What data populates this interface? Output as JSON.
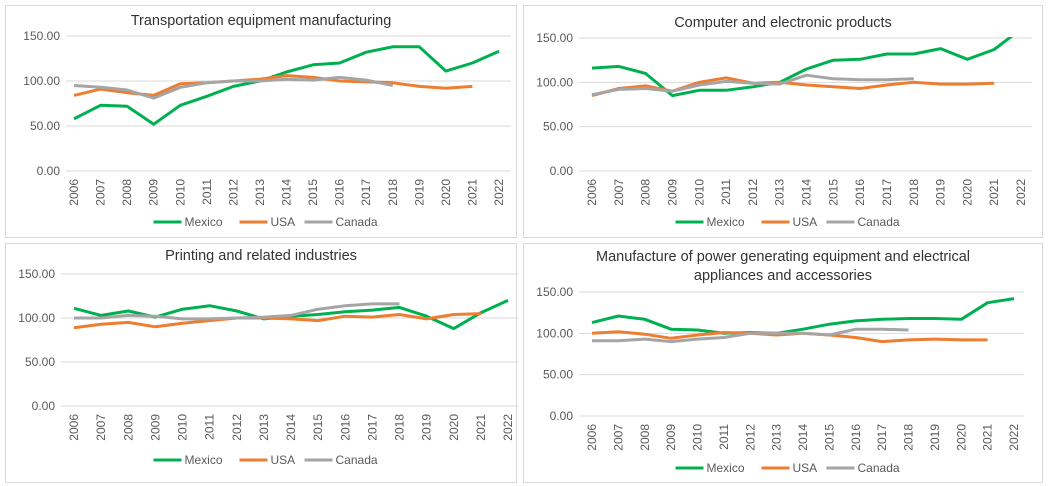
{
  "chart_data": [
    {
      "type": "line",
      "title": "Transportation equipment manufacturing",
      "categories": [
        "2006",
        "2007",
        "2008",
        "2009",
        "2010",
        "2011",
        "2012",
        "2013",
        "2014",
        "2015",
        "2016",
        "2017",
        "2018",
        "2019",
        "2020",
        "2021",
        "2022"
      ],
      "yticks": [
        "0.00",
        "50.00",
        "100.00",
        "150.00"
      ],
      "ylim": [
        0,
        150
      ],
      "grid": true,
      "legend": "bottom",
      "series": [
        {
          "name": "Mexico",
          "color": "#00b050",
          "values": [
            58,
            73,
            72,
            52,
            73,
            83,
            94,
            100,
            110,
            118,
            120,
            132,
            138,
            138,
            111,
            120,
            133
          ]
        },
        {
          "name": "USA",
          "color": "#ed7d31",
          "values": [
            84,
            91,
            87,
            84,
            97,
            98,
            100,
            102,
            106,
            104,
            100,
            99,
            98,
            94,
            92,
            94,
            null
          ]
        },
        {
          "name": "Canada",
          "color": "#a5a5a5",
          "values": [
            95,
            93,
            90,
            81,
            93,
            98,
            100,
            100,
            102,
            101,
            104,
            101,
            95,
            null,
            null,
            null,
            null
          ]
        }
      ]
    },
    {
      "type": "line",
      "title": "Computer and electronic products",
      "categories": [
        "2006",
        "2007",
        "2008",
        "2009",
        "2010",
        "2011",
        "2012",
        "2013",
        "2014",
        "2015",
        "2016",
        "2017",
        "2018",
        "2019",
        "2020",
        "2021",
        "2022"
      ],
      "yticks": [
        "0.00",
        "50.00",
        "100.00",
        "150.00"
      ],
      "ylim": [
        0,
        150
      ],
      "grid": true,
      "legend": "bottom",
      "series": [
        {
          "name": "Mexico",
          "color": "#00b050",
          "values": [
            116,
            118,
            110,
            85,
            91,
            91,
            95,
            100,
            115,
            125,
            126,
            132,
            132,
            138,
            126,
            137,
            160
          ]
        },
        {
          "name": "USA",
          "color": "#ed7d31",
          "values": [
            85,
            93,
            96,
            90,
            100,
            105,
            99,
            100,
            97,
            95,
            93,
            97,
            100,
            98,
            98,
            99,
            null
          ]
        },
        {
          "name": "Canada",
          "color": "#a5a5a5",
          "values": [
            86,
            92,
            93,
            90,
            97,
            101,
            99,
            98,
            108,
            104,
            103,
            103,
            104,
            null,
            null,
            null,
            null
          ]
        }
      ]
    },
    {
      "type": "line",
      "title": "Printing and related industries",
      "categories": [
        "2006",
        "2007",
        "2008",
        "2009",
        "2010",
        "2011",
        "2012",
        "2013",
        "2014",
        "2015",
        "2016",
        "2017",
        "2018",
        "2019",
        "2020",
        "2021",
        "2022"
      ],
      "yticks": [
        "0.00",
        "50.00",
        "100.00",
        "150.00"
      ],
      "ylim": [
        0,
        150
      ],
      "grid": true,
      "legend": "bottom",
      "series": [
        {
          "name": "Mexico",
          "color": "#00b050",
          "values": [
            111,
            103,
            108,
            101,
            110,
            114,
            108,
            99,
            102,
            104,
            107,
            109,
            112,
            102,
            88,
            106,
            120
          ]
        },
        {
          "name": "USA",
          "color": "#ed7d31",
          "values": [
            89,
            93,
            95,
            90,
            94,
            97,
            100,
            100,
            99,
            97,
            102,
            101,
            104,
            99,
            104,
            105,
            null
          ]
        },
        {
          "name": "Canada",
          "color": "#a5a5a5",
          "values": [
            100,
            100,
            103,
            102,
            99,
            99,
            100,
            101,
            103,
            110,
            114,
            116,
            116,
            null,
            null,
            null,
            null
          ]
        }
      ]
    },
    {
      "type": "line",
      "title": "Manufacture of power generating equipment and electrical appliances and accessories",
      "categories": [
        "2006",
        "2007",
        "2008",
        "2009",
        "2010",
        "2011",
        "2012",
        "2013",
        "2014",
        "2015",
        "2016",
        "2017",
        "2018",
        "2019",
        "2020",
        "2021",
        "2022"
      ],
      "yticks": [
        "0.00",
        "50.00",
        "100.00",
        "150.00"
      ],
      "ylim": [
        0,
        150
      ],
      "grid": true,
      "legend": "bottom",
      "series": [
        {
          "name": "Mexico",
          "color": "#00b050",
          "values": [
            113,
            121,
            117,
            105,
            104,
            100,
            101,
            100,
            105,
            111,
            115,
            117,
            118,
            118,
            117,
            137,
            142
          ]
        },
        {
          "name": "USA",
          "color": "#ed7d31",
          "values": [
            100,
            102,
            99,
            94,
            98,
            101,
            100,
            98,
            100,
            98,
            95,
            90,
            92,
            93,
            92,
            92,
            null
          ]
        },
        {
          "name": "Canada",
          "color": "#a5a5a5",
          "values": [
            91,
            91,
            93,
            90,
            93,
            95,
            100,
            100,
            100,
            98,
            105,
            105,
            104,
            null,
            null,
            null,
            null
          ]
        }
      ]
    }
  ]
}
